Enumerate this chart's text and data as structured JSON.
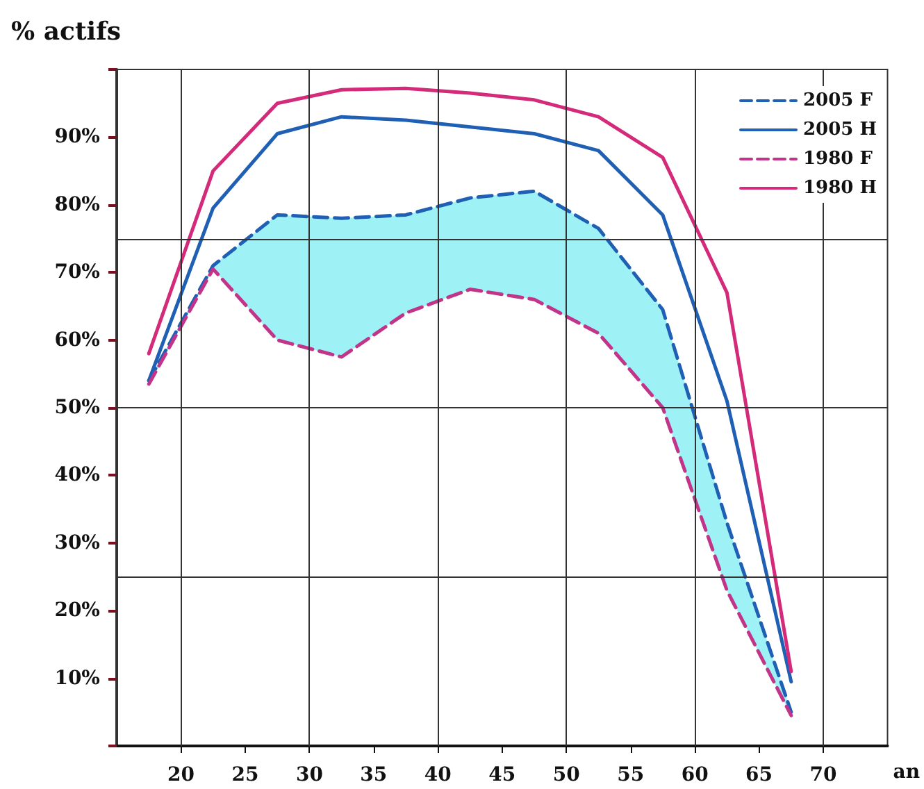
{
  "chart_data": {
    "type": "line",
    "ylabel": "% actifs",
    "xlabel": "an",
    "x": [
      17.5,
      22.5,
      27.5,
      32.5,
      37.5,
      42.5,
      47.5,
      52.5,
      57.5,
      62.5,
      67.5
    ],
    "series": [
      {
        "name": "2005 F",
        "color": "#1f5fb4",
        "line_style": "dashed",
        "values": [
          54,
          71,
          78.5,
          78,
          78.5,
          81,
          82,
          76.5,
          64.5,
          33,
          5
        ],
        "lower": [
          53.5,
          70.5,
          60,
          57.5,
          64,
          67.5,
          66,
          61,
          50,
          23,
          4.5
        ],
        "upper": [
          54,
          71,
          78.5,
          78,
          78.5,
          81,
          82,
          76.5,
          64.5,
          33,
          5
        ]
      },
      {
        "name": "2005 H",
        "color": "#1f5fb4",
        "line_style": "solid",
        "values": [
          54,
          79.5,
          90.5,
          93,
          92.5,
          91.5,
          90.5,
          88,
          78.5,
          51,
          9.5
        ]
      },
      {
        "name": "1980 F",
        "color": "#c2348a",
        "line_style": "dashed",
        "values": [
          53.5,
          70.5,
          60,
          57.5,
          64,
          67.5,
          66,
          61,
          50,
          23,
          4.5
        ]
      },
      {
        "name": "1980 H",
        "color": "#d42a7a",
        "line_style": "solid",
        "values": [
          58,
          85,
          95,
          97,
          97.2,
          96.5,
          95.5,
          93,
          87,
          67,
          11
        ]
      }
    ],
    "xlim": [
      15,
      75
    ],
    "xticks": [
      20,
      25,
      30,
      35,
      40,
      45,
      50,
      55,
      60,
      65,
      70
    ],
    "ylim": [
      0,
      100
    ],
    "yticks": [
      {
        "value": 0,
        "label": null
      },
      {
        "value": 10,
        "label": "10%"
      },
      {
        "value": 20,
        "label": "20%"
      },
      {
        "value": 30,
        "label": "30%"
      },
      {
        "value": 40,
        "label": "40%"
      },
      {
        "value": 50,
        "label": "50%"
      },
      {
        "value": 60,
        "label": "60%"
      },
      {
        "value": 70,
        "label": "70%"
      },
      {
        "value": 80,
        "label": "80%"
      },
      {
        "value": 90,
        "label": "90%"
      },
      {
        "value": 100,
        "label": null
      }
    ],
    "ref_lines": [
      {
        "axis": "x",
        "value": 20
      },
      {
        "axis": "x",
        "value": 30
      },
      {
        "axis": "x",
        "value": 40
      },
      {
        "axis": "x",
        "value": 50
      },
      {
        "axis": "x",
        "value": 60
      },
      {
        "axis": "x",
        "value": 70
      },
      {
        "axis": "y",
        "value": 25
      },
      {
        "axis": "y",
        "value": 50
      },
      {
        "axis": "y",
        "value": 75
      }
    ],
    "grid": false,
    "legend": "top right",
    "marker": "none"
  }
}
